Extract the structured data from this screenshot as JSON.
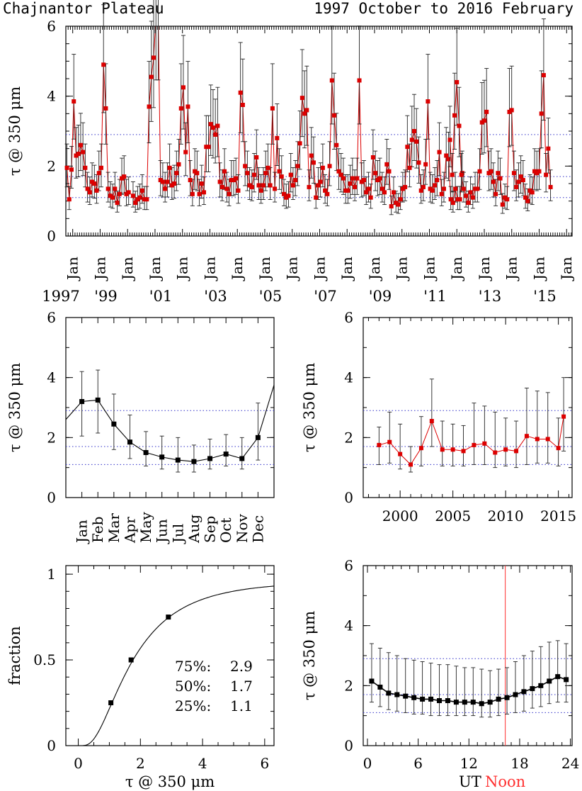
{
  "header": {
    "site": "Chajnantor Plateau",
    "period": "1997 October to 2016 February"
  },
  "colors": {
    "series_red": "#dd0000",
    "series_black": "#000000",
    "reference_lines": "#3030c8",
    "noon_line": "#ff3030"
  },
  "reference_levels": [
    1.1,
    1.7,
    2.9
  ],
  "chart_data": [
    {
      "id": "timeseries",
      "type": "line",
      "ylabel": "τ @ 350 μm",
      "ylim": [
        0,
        6
      ],
      "yticks": [
        0,
        2,
        4,
        6
      ],
      "xlim": [
        1997.75,
        2016.2
      ],
      "xtick_labels": [
        "Jan",
        "Jan",
        "Jan",
        "Jan",
        "Jan",
        "Jan",
        "Jan",
        "Jan",
        "Jan",
        "Jan",
        "Jan",
        "Jan",
        "Jan",
        "Jan",
        "Jan",
        "Jan",
        "Jan",
        "Jan",
        "Jan"
      ],
      "year_labels": [
        "1997",
        "'99",
        "'01",
        "'03",
        "'05",
        "'07",
        "'09",
        "'11",
        "'13",
        "'15"
      ],
      "color": "#dd0000",
      "segments": [
        {
          "start": 1997.79,
          "step": 0.0833,
          "median": [
            1.95,
            1.05,
            1.9,
            3.85,
            2.3,
            2.35,
            2.6,
            2.4,
            1.95,
            1.35,
            1.25,
            1.55,
            1.5,
            1.3,
            1.8,
            1.95,
            4.9,
            3.65,
            1.35,
            1.15,
            1.1,
            1.35,
            0.95,
            1.2,
            1.65,
            1.7,
            1.2,
            1.25
          ]
        },
        {
          "start": 2000.2,
          "step": 0.0833,
          "median": [
            1.15,
            0.95,
            1.05,
            1.1,
            1.3,
            1.05,
            1.05,
            3.7,
            4.55,
            5.1,
            6.2,
            6.2,
            1.6,
            1.55,
            1.35,
            1.55,
            1.95,
            1.45,
            1.5,
            1.8,
            2.05,
            3.65,
            4.25,
            2.4,
            3.7,
            1.6,
            1.2,
            1.85,
            1.8,
            1.2,
            1.5,
            1.25,
            2.55,
            2.55,
            3.2,
            3.1,
            2.9,
            3.15,
            1.55,
            1.4,
            1.85,
            1.35,
            1.2,
            1.6,
            1.6,
            1.65,
            1.3,
            4.1,
            3.75,
            2.0,
            1.8,
            1.45,
            1.4,
            1.75,
            2.25,
            1.45,
            1.3,
            1.45,
            1.8,
            1.95,
            1.45,
            3.65,
            1.35,
            2.8,
            1.85,
            1.7,
            1.2,
            1.1,
            1.15,
            1.75,
            1.45,
            1.6,
            2.0,
            2.65,
            3.95,
            3.5,
            3.6,
            1.4,
            2.3,
            2.1,
            1.1,
            1.45,
            1.55,
            1.95,
            1.3,
            1.2,
            2.0,
            4.45,
            3.45,
            2.6,
            1.85,
            1.75,
            1.65,
            1.3,
            1.3,
            1.5,
            1.65,
            1.4,
            1.65,
            4.45,
            1.55,
            1.6,
            1.25,
            1.35,
            1.1,
            2.25,
            1.8,
            1.6,
            1.65,
            1.35,
            1.25,
            2.05,
            1.85,
            0.85,
            1.25,
            0.95,
            0.9,
            1.05,
            1.35,
            1.4,
            2.55,
            1.95,
            2.75,
            3.0,
            2.7,
            2.1,
            1.3,
            1.4,
            2.05,
            3.85,
            1.35,
            1.3,
            1.45,
            1.6,
            2.4,
            1.2,
            1.35,
            2.3,
            2.2,
            1.05,
            0.95,
            1.35,
            1.05,
            1.05,
            1.8
          ]
        },
        {
          "start": 2011.75,
          "step": 0.0833,
          "median": [
            2.75,
            1.75,
            3.45,
            4.4,
            3.15,
            1.75,
            1.35,
            1.15,
            0.95,
            1.25,
            1.1,
            1.35,
            1.35,
            1.85,
            3.25,
            3.3,
            3.55,
            1.8,
            1.85,
            1.55,
            1.2,
            1.8,
            1.65,
            0.9,
            1.1,
            1.05,
            3.55,
            3.6,
            1.8,
            1.4,
            1.55,
            1.7,
            1.6,
            1.1,
            1.0,
            1.3,
            1.25,
            1.85,
            1.8,
            1.85,
            3.5,
            4.6,
            1.75,
            2.5,
            1.4
          ]
        }
      ]
    },
    {
      "id": "monthly",
      "type": "line",
      "ylabel": "τ @ 350 μm",
      "ylim": [
        0,
        6
      ],
      "yticks": [
        0,
        2,
        4,
        6
      ],
      "categories": [
        "Jan",
        "Feb",
        "Mar",
        "Apr",
        "May",
        "Jun",
        "Jul",
        "Aug",
        "Sep",
        "Oct",
        "Nov",
        "Dec"
      ],
      "values": [
        3.2,
        3.25,
        2.45,
        1.85,
        1.5,
        1.35,
        1.25,
        1.2,
        1.3,
        1.45,
        1.3,
        2.0
      ],
      "low": [
        2.05,
        2.15,
        1.6,
        1.3,
        1.05,
        0.95,
        0.85,
        0.85,
        0.95,
        1.05,
        0.95,
        1.25
      ],
      "high": [
        4.2,
        4.25,
        3.45,
        2.75,
        2.2,
        2.05,
        2.0,
        1.75,
        1.95,
        2.1,
        2.0,
        3.15
      ],
      "color": "#000000"
    },
    {
      "id": "yearly",
      "type": "line",
      "ylabel": "τ @ 350 μm",
      "ylim": [
        0,
        6
      ],
      "yticks": [
        0,
        2,
        4,
        6
      ],
      "x": [
        1998,
        1999,
        2000,
        2001,
        2002,
        2003,
        2004,
        2005,
        2006,
        2007,
        2008,
        2009,
        2010,
        2011,
        2012,
        2013,
        2014,
        2015
      ],
      "values": [
        1.75,
        1.85,
        1.45,
        1.1,
        1.65,
        2.55,
        1.6,
        1.6,
        1.55,
        1.75,
        1.8,
        1.5,
        1.6,
        1.55,
        2.05,
        1.95,
        1.95,
        1.65
      ],
      "low": [
        1.1,
        1.15,
        0.95,
        0.85,
        1.05,
        1.7,
        1.05,
        1.05,
        1.05,
        1.1,
        1.1,
        1.0,
        1.05,
        1.0,
        1.1,
        1.15,
        1.15,
        1.05
      ],
      "high": [
        2.35,
        2.85,
        2.45,
        1.7,
        2.7,
        3.95,
        2.55,
        2.45,
        2.4,
        3.15,
        3.05,
        2.85,
        2.65,
        2.55,
        3.65,
        3.55,
        3.5,
        2.65
      ],
      "extra_point": {
        "x": 2015.5,
        "value": 2.7,
        "low": 1.55,
        "high": 4.0
      },
      "xticks": [
        2000,
        2005,
        2010,
        2015
      ],
      "xlim": [
        1996.5,
        2016.3
      ],
      "color": "#dd0000"
    },
    {
      "id": "cumulative",
      "type": "line",
      "xlabel": "τ @ 350 μm",
      "ylabel": "fraction",
      "xlim": [
        -0.4,
        6.3
      ],
      "ylim": [
        0,
        1.05
      ],
      "xticks": [
        0,
        2,
        4,
        6
      ],
      "yticks": [
        0,
        0.5,
        1
      ],
      "ytick_labels": [
        "0",
        "0.5",
        "1"
      ],
      "markers": [
        {
          "x": 1.05,
          "y": 0.25
        },
        {
          "x": 1.7,
          "y": 0.5
        },
        {
          "x": 2.9,
          "y": 0.75
        }
      ],
      "annotations": [
        {
          "pct": "75%:",
          "val": "2.9"
        },
        {
          "pct": "50%:",
          "val": "1.7"
        },
        {
          "pct": "25%:",
          "val": "1.1"
        }
      ]
    },
    {
      "id": "diurnal",
      "type": "line",
      "ylabel": "τ @ 350 μm",
      "ylim": [
        0,
        6
      ],
      "yticks": [
        0,
        2,
        4,
        6
      ],
      "xlim": [
        -0.5,
        24.2
      ],
      "xticks": [
        0,
        6,
        12,
        18,
        24
      ],
      "xlabel_prefix": "UT",
      "xlabel_noon": "Noon",
      "noon_ut": 16.3,
      "x": [
        0.5,
        1.5,
        2.5,
        3.5,
        4.5,
        5.5,
        6.5,
        7.5,
        8.5,
        9.5,
        10.5,
        11.5,
        12.5,
        13.5,
        14.5,
        15.5,
        16.5,
        17.5,
        18.5,
        19.5,
        20.5,
        21.5,
        22.5,
        23.5
      ],
      "values": [
        2.15,
        1.95,
        1.75,
        1.7,
        1.65,
        1.6,
        1.55,
        1.55,
        1.5,
        1.5,
        1.45,
        1.45,
        1.45,
        1.4,
        1.45,
        1.55,
        1.6,
        1.7,
        1.8,
        1.9,
        2.0,
        2.15,
        2.3,
        2.2
      ],
      "low": [
        1.45,
        1.3,
        1.2,
        1.15,
        1.1,
        1.05,
        1.05,
        1.0,
        1.0,
        1.0,
        1.0,
        1.0,
        1.0,
        0.95,
        0.95,
        1.0,
        1.05,
        1.1,
        1.15,
        1.25,
        1.3,
        1.4,
        1.45,
        1.45
      ],
      "high": [
        3.4,
        3.25,
        3.1,
        3.0,
        2.9,
        2.85,
        2.8,
        2.75,
        2.7,
        2.7,
        2.65,
        2.6,
        2.6,
        2.55,
        2.5,
        2.55,
        2.6,
        2.8,
        3.0,
        3.15,
        3.3,
        3.45,
        3.5,
        3.4
      ],
      "color": "#000000"
    }
  ]
}
